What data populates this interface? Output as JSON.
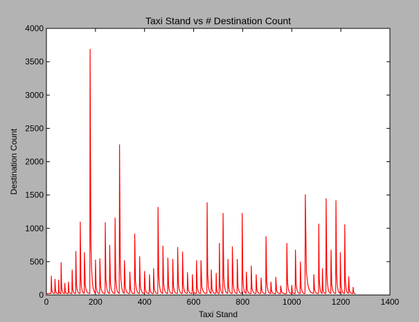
{
  "chart_data": {
    "type": "line",
    "title": "Taxi Stand vs # Destination Count",
    "xlabel": "Taxi Stand",
    "ylabel": "Destination Count",
    "xlim": [
      0,
      1400
    ],
    "ylim": [
      0,
      4000
    ],
    "xticks": [
      0,
      200,
      400,
      600,
      800,
      1000,
      1200,
      1400
    ],
    "yticks": [
      0,
      500,
      1000,
      1500,
      2000,
      2500,
      3000,
      3500,
      4000
    ],
    "grid": false,
    "legend": "none",
    "series": [
      {
        "color": "#ff0000",
        "peaks": [
          {
            "x": 20,
            "y": 290
          },
          {
            "x": 35,
            "y": 240
          },
          {
            "x": 50,
            "y": 230
          },
          {
            "x": 60,
            "y": 490
          },
          {
            "x": 75,
            "y": 180
          },
          {
            "x": 90,
            "y": 200
          },
          {
            "x": 105,
            "y": 380
          },
          {
            "x": 120,
            "y": 660
          },
          {
            "x": 138,
            "y": 1100
          },
          {
            "x": 155,
            "y": 640
          },
          {
            "x": 178,
            "y": 3690
          },
          {
            "x": 200,
            "y": 530
          },
          {
            "x": 218,
            "y": 550
          },
          {
            "x": 240,
            "y": 1090
          },
          {
            "x": 258,
            "y": 750
          },
          {
            "x": 280,
            "y": 1160
          },
          {
            "x": 298,
            "y": 2260
          },
          {
            "x": 318,
            "y": 520
          },
          {
            "x": 340,
            "y": 350
          },
          {
            "x": 360,
            "y": 920
          },
          {
            "x": 380,
            "y": 580
          },
          {
            "x": 400,
            "y": 360
          },
          {
            "x": 420,
            "y": 310
          },
          {
            "x": 437,
            "y": 400
          },
          {
            "x": 455,
            "y": 1320
          },
          {
            "x": 475,
            "y": 740
          },
          {
            "x": 495,
            "y": 560
          },
          {
            "x": 515,
            "y": 540
          },
          {
            "x": 535,
            "y": 720
          },
          {
            "x": 555,
            "y": 650
          },
          {
            "x": 575,
            "y": 340
          },
          {
            "x": 595,
            "y": 310
          },
          {
            "x": 612,
            "y": 520
          },
          {
            "x": 630,
            "y": 520
          },
          {
            "x": 655,
            "y": 1390
          },
          {
            "x": 672,
            "y": 380
          },
          {
            "x": 692,
            "y": 330
          },
          {
            "x": 705,
            "y": 780
          },
          {
            "x": 720,
            "y": 1230
          },
          {
            "x": 740,
            "y": 540
          },
          {
            "x": 758,
            "y": 730
          },
          {
            "x": 778,
            "y": 540
          },
          {
            "x": 798,
            "y": 1230
          },
          {
            "x": 815,
            "y": 350
          },
          {
            "x": 835,
            "y": 440
          },
          {
            "x": 855,
            "y": 310
          },
          {
            "x": 875,
            "y": 260
          },
          {
            "x": 895,
            "y": 880
          },
          {
            "x": 915,
            "y": 200
          },
          {
            "x": 935,
            "y": 270
          },
          {
            "x": 955,
            "y": 140
          },
          {
            "x": 980,
            "y": 780
          },
          {
            "x": 1000,
            "y": 150
          },
          {
            "x": 1015,
            "y": 680
          },
          {
            "x": 1035,
            "y": 500
          },
          {
            "x": 1055,
            "y": 1510
          },
          {
            "x": 1090,
            "y": 310
          },
          {
            "x": 1110,
            "y": 1070
          },
          {
            "x": 1125,
            "y": 400
          },
          {
            "x": 1140,
            "y": 1450
          },
          {
            "x": 1160,
            "y": 680
          },
          {
            "x": 1180,
            "y": 1420
          },
          {
            "x": 1198,
            "y": 640
          },
          {
            "x": 1216,
            "y": 1060
          },
          {
            "x": 1232,
            "y": 280
          },
          {
            "x": 1250,
            "y": 120
          }
        ]
      }
    ]
  }
}
